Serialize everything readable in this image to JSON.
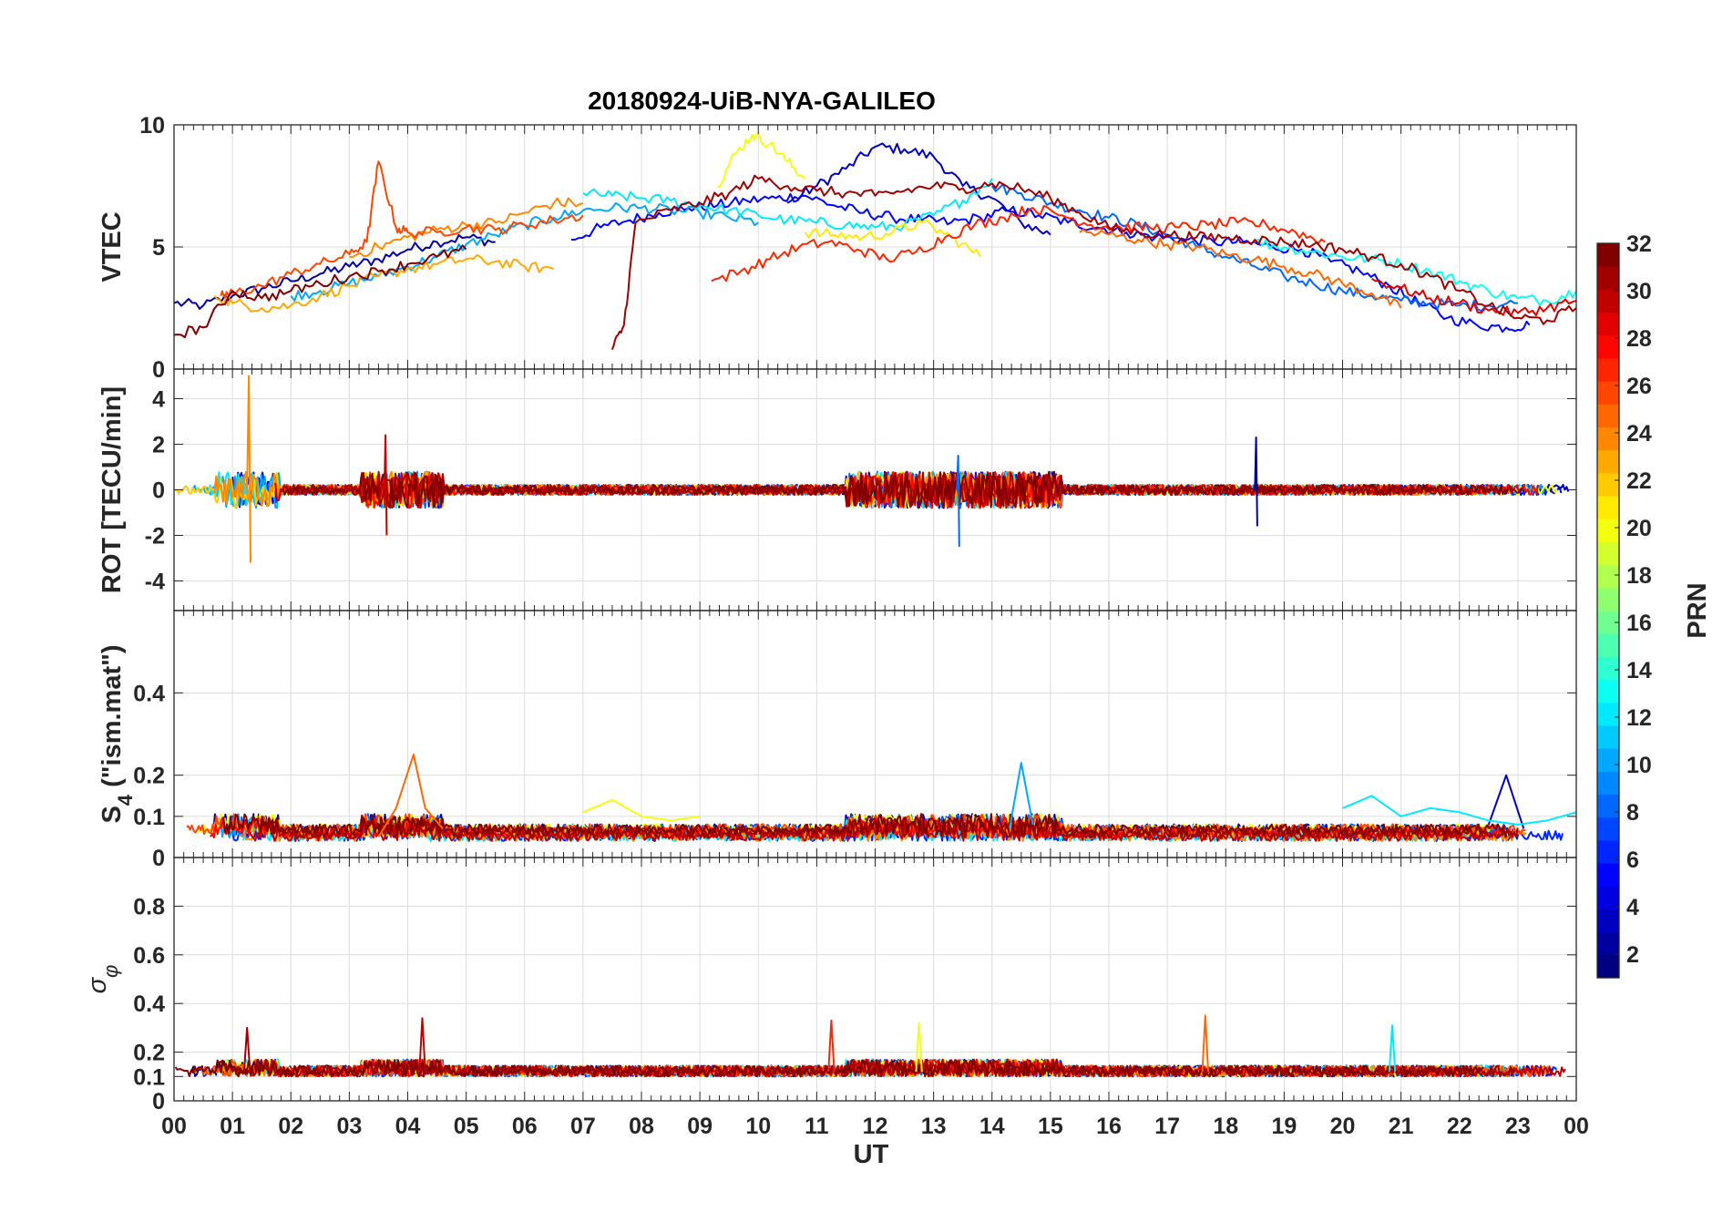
{
  "figure": {
    "title": "20180924-UiB-NYA-GALILEO",
    "xlabel": "UT",
    "x_tick_labels": [
      "00",
      "01",
      "02",
      "03",
      "04",
      "05",
      "06",
      "07",
      "08",
      "09",
      "10",
      "11",
      "12",
      "13",
      "14",
      "15",
      "16",
      "17",
      "18",
      "19",
      "20",
      "21",
      "22",
      "23",
      "00"
    ]
  },
  "colorbar": {
    "label": "PRN",
    "ticks": [
      "2",
      "4",
      "6",
      "8",
      "10",
      "12",
      "14",
      "16",
      "18",
      "20",
      "22",
      "24",
      "26",
      "28",
      "30",
      "32"
    ],
    "range": [
      1,
      32
    ],
    "colormap": "jet"
  },
  "panels": [
    {
      "id": "vtec",
      "ylabel": "VTEC",
      "ylim": [
        0,
        10
      ],
      "ytick_labels": [
        "0",
        "5",
        "10"
      ]
    },
    {
      "id": "rot",
      "ylabel": "ROT [TECU/min]",
      "ylim": [
        -5.3,
        5.3
      ],
      "ytick_labels": [
        "-4",
        "-2",
        "0",
        "2",
        "4"
      ]
    },
    {
      "id": "s4",
      "ylabel_main": "S",
      "ylabel_sub": "4",
      "ylabel_rest": " (\"ism.mat\")",
      "ylim": [
        0,
        0.6
      ],
      "ytick_labels": [
        "0",
        "0.1",
        "0.2",
        "0.4"
      ]
    },
    {
      "id": "sigma",
      "ylabel_main": "σ",
      "ylabel_sub": "φ",
      "ylim": [
        0,
        1
      ],
      "ytick_labels": [
        "0",
        "0.1",
        "0.2",
        "0.4",
        "0.6",
        "0.8"
      ]
    }
  ],
  "chart_data": [
    {
      "type": "line",
      "title": "20180924-UiB-NYA-GALILEO",
      "ylabel": "VTEC",
      "xlabel": "",
      "xlim": [
        0,
        24
      ],
      "ylim": [
        0,
        10
      ],
      "grid": true,
      "series": [
        {
          "prn": 2,
          "x": [
            0,
            0.5,
            1,
            1.5,
            2,
            2.5,
            3,
            3.5,
            4,
            4.5,
            5,
            5.5
          ],
          "y": [
            2.7,
            2.6,
            3.0,
            3.3,
            3.6,
            3.9,
            4.2,
            4.5,
            4.9,
            5.2,
            5.4,
            5.2
          ]
        },
        {
          "prn": 3,
          "x": [
            10.5,
            11,
            11.5,
            12,
            12.5,
            13,
            13.5,
            14,
            14.5,
            15
          ],
          "y": [
            6.8,
            7.5,
            8.2,
            9.1,
            9.0,
            8.7,
            7.5,
            7.0,
            6.0,
            5.5
          ]
        },
        {
          "prn": 5,
          "x": [
            6.8,
            7.3,
            7.8,
            8.3,
            8.8,
            9.3,
            9.8,
            10.3,
            10.8,
            11.3,
            11.8,
            12.3,
            12.8,
            13.3,
            13.8,
            14.3,
            14.8,
            15.3,
            15.8,
            16.3,
            16.8,
            17.3,
            17.8,
            18.3,
            18.8,
            19.3,
            19.8,
            20.3,
            20.8,
            21.3,
            21.8,
            22.3,
            22.8,
            23.2
          ],
          "y": [
            5.3,
            5.8,
            6.1,
            6.4,
            6.6,
            6.7,
            6.9,
            7.0,
            7.1,
            6.7,
            6.4,
            6.2,
            6.1,
            6.0,
            6.2,
            6.5,
            6.3,
            6.0,
            5.8,
            5.6,
            5.4,
            5.3,
            5.2,
            5.2,
            5.0,
            4.9,
            4.4,
            4.0,
            3.4,
            2.7,
            2.1,
            1.8,
            1.7,
            1.8
          ]
        },
        {
          "prn": 8,
          "x": [
            14,
            14.5,
            15,
            15.5,
            16,
            16.5,
            17,
            17.5,
            18,
            18.5,
            19,
            19.5,
            20,
            20.5,
            21,
            21.5,
            22,
            22.5,
            23
          ],
          "y": [
            7.5,
            7.2,
            6.8,
            6.5,
            6.2,
            5.9,
            5.5,
            5.0,
            4.6,
            4.2,
            3.8,
            3.5,
            3.2,
            3.0,
            2.8,
            2.7,
            2.6,
            2.6,
            2.7
          ]
        },
        {
          "prn": 10,
          "x": [
            2,
            2.5,
            3,
            3.5,
            4,
            4.5,
            5,
            5.5,
            6,
            6.5,
            7,
            7.5,
            8,
            8.5,
            9,
            9.5,
            10
          ],
          "y": [
            3.0,
            3.2,
            3.5,
            3.8,
            4.2,
            4.6,
            5.1,
            5.5,
            5.9,
            6.2,
            6.5,
            6.6,
            6.6,
            6.5,
            6.4,
            6.2,
            6.0
          ]
        },
        {
          "prn": 12,
          "x": [
            7,
            7.5,
            8,
            8.5,
            9,
            9.5,
            10,
            10.5,
            11,
            11.5,
            12,
            12.5,
            13,
            13.5,
            14
          ],
          "y": [
            7.2,
            7.1,
            7.0,
            6.9,
            6.7,
            6.5,
            6.3,
            6.1,
            6.0,
            5.9,
            5.8,
            5.9,
            6.3,
            6.9,
            7.8
          ]
        },
        {
          "prn": 13,
          "x": [
            18.5,
            19,
            19.5,
            20,
            20.5,
            21,
            21.5,
            22,
            22.5,
            23,
            23.5,
            24
          ],
          "y": [
            5.2,
            5.0,
            4.8,
            4.6,
            4.5,
            4.3,
            4.0,
            3.6,
            3.2,
            2.9,
            2.8,
            3.2
          ]
        },
        {
          "prn": 20,
          "x": [
            9.3,
            9.6,
            9.9,
            10.2,
            10.5,
            10.8
          ],
          "y": [
            7.5,
            8.8,
            9.6,
            9.2,
            8.5,
            7.8
          ]
        },
        {
          "prn": 21,
          "x": [
            10.8,
            11.3,
            11.8,
            12.3,
            12.8,
            13.3,
            13.8
          ],
          "y": [
            5.6,
            5.5,
            5.4,
            5.6,
            6.0,
            5.4,
            4.6
          ]
        },
        {
          "prn": 23,
          "x": [
            0.7,
            1,
            1.5,
            2,
            2.5,
            3,
            3.5,
            4,
            4.5,
            5,
            5.5,
            6,
            6.5
          ],
          "y": [
            3.0,
            2.7,
            2.5,
            2.6,
            3.0,
            3.4,
            3.8,
            4.1,
            4.3,
            4.5,
            4.4,
            4.2,
            4.1
          ]
        },
        {
          "prn": 24,
          "x": [
            3,
            3.5,
            4,
            4.5,
            5,
            5.5,
            6,
            6.5,
            7
          ],
          "y": [
            4.6,
            5.0,
            5.4,
            5.7,
            5.9,
            6.0,
            6.4,
            6.8,
            6.8
          ]
        },
        {
          "prn": 25,
          "x": [
            15.5,
            16,
            16.5,
            17,
            17.5,
            18,
            18.5,
            19,
            19.5,
            20,
            20.5,
            21
          ],
          "y": [
            5.6,
            5.5,
            5.3,
            5.1,
            5.0,
            4.7,
            4.5,
            4.2,
            3.9,
            3.5,
            3.1,
            2.5
          ]
        },
        {
          "prn": 26,
          "x": [
            0.8,
            1,
            1.5,
            2,
            2.5,
            3,
            3.3,
            3.5,
            3.8,
            4,
            4.5,
            5,
            5.5,
            6,
            6.5,
            7
          ],
          "y": [
            3.0,
            3.1,
            3.4,
            3.9,
            4.3,
            4.7,
            5.2,
            8.5,
            5.8,
            5.6,
            5.6,
            5.8,
            5.7,
            5.9,
            6.1,
            6.3
          ]
        },
        {
          "prn": 27,
          "x": [
            9.2,
            9.7,
            10.2,
            10.7,
            11.2,
            11.7,
            12.2,
            12.7,
            13.2,
            13.7,
            14.2,
            14.7,
            15.2,
            15.7,
            16.2,
            16.7,
            17.2,
            17.7,
            18.2,
            18.7,
            19.2,
            19.7
          ],
          "y": [
            3.6,
            4.0,
            4.5,
            5.0,
            5.2,
            4.9,
            4.5,
            4.8,
            5.4,
            5.9,
            6.2,
            6.6,
            6.3,
            5.9,
            5.8,
            5.8,
            5.8,
            5.9,
            6.0,
            5.9,
            5.6,
            5.2
          ]
        },
        {
          "prn": 29,
          "x": [
            20.5,
            21,
            21.5,
            22,
            22.5,
            23,
            23.5,
            24
          ],
          "y": [
            3.7,
            3.3,
            2.9,
            2.7,
            2.4,
            2.3,
            2.5,
            2.8
          ]
        },
        {
          "prn": 31,
          "x": [
            7.5,
            7.7,
            7.9,
            8.5,
            9,
            9.5,
            10,
            10.5,
            11,
            11.5,
            12,
            12.5,
            13,
            13.5,
            14,
            14.5,
            15,
            15.5,
            16,
            16.5,
            17,
            17.5,
            18,
            18.5,
            19,
            19.5,
            20,
            20.5,
            21,
            21.5,
            22,
            22.5,
            23,
            23.5,
            24
          ],
          "y": [
            0.8,
            1.8,
            6.0,
            6.5,
            6.8,
            7.2,
            7.8,
            7.5,
            7.3,
            7.2,
            7.1,
            7.3,
            7.5,
            7.4,
            7.6,
            7.4,
            7.0,
            6.4,
            5.8,
            5.6,
            5.5,
            5.4,
            5.4,
            5.3,
            5.2,
            5.1,
            4.9,
            4.6,
            4.3,
            3.8,
            3.2,
            2.6,
            2.1,
            2.0,
            2.5
          ]
        },
        {
          "prn": 32,
          "x": [
            0,
            0.5,
            1,
            1.5,
            2,
            2.5,
            3,
            3.5,
            4,
            4.5,
            5
          ],
          "y": [
            1.4,
            1.7,
            3.2,
            2.9,
            3.2,
            3.5,
            3.8,
            4.0,
            4.3,
            4.6,
            4.9
          ]
        }
      ]
    },
    {
      "type": "line",
      "ylabel": "ROT [TECU/min]",
      "xlabel": "",
      "xlim": [
        0,
        24
      ],
      "ylim": [
        -5.3,
        5.3
      ],
      "grid": true,
      "note_level": 0,
      "series": [
        {
          "prn": 24,
          "x": [
            1.25,
            1.28,
            1.31
          ],
          "y": [
            0.0,
            5.0,
            -3.2
          ]
        },
        {
          "prn": 30,
          "x": [
            3.6,
            3.62,
            3.64
          ],
          "y": [
            0.0,
            2.4,
            -2.0
          ]
        },
        {
          "prn": 2,
          "x": [
            18.5,
            18.52,
            18.54
          ],
          "y": [
            0.0,
            2.3,
            -1.6
          ]
        },
        {
          "prn": 8,
          "x": [
            13.4,
            13.42,
            13.44
          ],
          "y": [
            0.0,
            1.5,
            -2.5
          ]
        }
      ]
    },
    {
      "type": "line",
      "ylabel": "S4 (\"ism.mat\")",
      "xlabel": "",
      "xlim": [
        0,
        24
      ],
      "ylim": [
        0,
        0.6
      ],
      "grid": true,
      "series": [
        {
          "prn": 25,
          "x": [
            3.5,
            3.8,
            4.1,
            4.3,
            4.6
          ],
          "y": [
            0.05,
            0.12,
            0.25,
            0.12,
            0.07
          ]
        },
        {
          "prn": 10,
          "x": [
            14.3,
            14.5,
            14.7
          ],
          "y": [
            0.07,
            0.23,
            0.08
          ]
        },
        {
          "prn": 3,
          "x": [
            22.5,
            22.8,
            23.1
          ],
          "y": [
            0.08,
            0.2,
            0.07
          ]
        },
        {
          "prn": 20,
          "x": [
            7.0,
            7.5,
            8.0,
            8.5,
            9.0
          ],
          "y": [
            0.11,
            0.14,
            0.1,
            0.09,
            0.1
          ]
        },
        {
          "prn": 12,
          "x": [
            20.0,
            20.5,
            21.0,
            21.5,
            22.0,
            22.5,
            23.0,
            23.5,
            24.0
          ],
          "y": [
            0.12,
            0.15,
            0.1,
            0.12,
            0.11,
            0.09,
            0.08,
            0.09,
            0.11
          ]
        }
      ]
    },
    {
      "type": "line",
      "ylabel": "σφ",
      "xlabel": "UT",
      "xlim": [
        0,
        24
      ],
      "ylim": [
        0,
        1
      ],
      "grid": true,
      "series": [
        {
          "prn": 31,
          "x": [
            1.2,
            1.25,
            1.3
          ],
          "y": [
            0.12,
            0.3,
            0.12
          ]
        },
        {
          "prn": 30,
          "x": [
            4.2,
            4.25,
            4.3
          ],
          "y": [
            0.12,
            0.34,
            0.12
          ]
        },
        {
          "prn": 27,
          "x": [
            11.2,
            11.25,
            11.3
          ],
          "y": [
            0.12,
            0.33,
            0.12
          ]
        },
        {
          "prn": 25,
          "x": [
            17.6,
            17.65,
            17.7
          ],
          "y": [
            0.12,
            0.35,
            0.12
          ]
        },
        {
          "prn": 20,
          "x": [
            12.7,
            12.75,
            12.8
          ],
          "y": [
            0.12,
            0.32,
            0.12
          ]
        },
        {
          "prn": 12,
          "x": [
            20.8,
            20.85,
            20.9
          ],
          "y": [
            0.12,
            0.31,
            0.12
          ]
        }
      ]
    }
  ]
}
